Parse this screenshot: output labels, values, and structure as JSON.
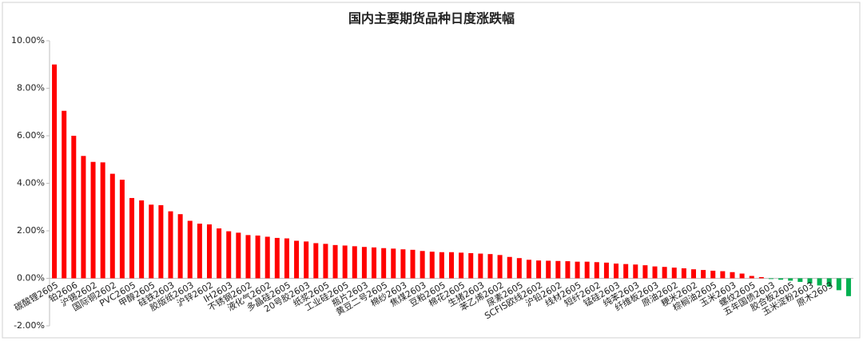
{
  "chart_data": {
    "type": "bar",
    "title": "国内主要期货品种日度涨跌幅",
    "categories": [
      "碳酸锂2605",
      null,
      "铂2606",
      null,
      "沪锡2602",
      null,
      "国际铜2602",
      null,
      "PVC2605",
      null,
      "甲醇2605",
      null,
      "硅铁2603",
      null,
      "胶版纸2603",
      null,
      "沪锌2602",
      null,
      "IH2603",
      null,
      "不锈钢2602",
      null,
      "液化气2602",
      null,
      "多晶硅2605",
      null,
      "20号胶2603",
      null,
      "纸浆2605",
      null,
      "工业硅2605",
      null,
      "瓶片2603",
      null,
      "黄豆二号2605",
      null,
      "棉纱2603",
      null,
      "焦煤2603",
      null,
      "豆粕2605",
      null,
      "棉花2605",
      null,
      "生猪2603",
      null,
      "苯乙烯2602",
      null,
      "尿素2605",
      null,
      "SCFIS欧线2602",
      null,
      "沪铅2602",
      null,
      "线材2605",
      null,
      "短纤2602",
      null,
      "锰硅2603",
      null,
      "纯苯2603",
      null,
      "纤维板2603",
      null,
      "原油2602",
      null,
      "粳米2602",
      null,
      "棕榈油2605",
      null,
      "玉米2603",
      null,
      "螺纹2605",
      null,
      "五年国债2603",
      null,
      "胶合板2605",
      null,
      "玉米淀粉2603",
      null,
      "原木2603",
      null,
      null
    ],
    "values": [
      9.0,
      7.05,
      6.0,
      5.15,
      4.9,
      4.88,
      4.4,
      4.15,
      3.38,
      3.28,
      3.1,
      3.08,
      2.82,
      2.7,
      2.42,
      2.3,
      2.27,
      2.1,
      1.98,
      1.92,
      1.82,
      1.8,
      1.75,
      1.7,
      1.68,
      1.58,
      1.55,
      1.48,
      1.45,
      1.4,
      1.38,
      1.35,
      1.32,
      1.3,
      1.27,
      1.25,
      1.22,
      1.2,
      1.15,
      1.12,
      1.1,
      1.1,
      1.08,
      1.06,
      1.04,
      1.02,
      0.98,
      0.9,
      0.85,
      0.78,
      0.75,
      0.74,
      0.73,
      0.72,
      0.7,
      0.7,
      0.68,
      0.66,
      0.62,
      0.6,
      0.58,
      0.55,
      0.5,
      0.48,
      0.45,
      0.42,
      0.38,
      0.35,
      0.32,
      0.3,
      0.26,
      0.2,
      0.1,
      0.05,
      -0.03,
      -0.06,
      -0.1,
      -0.15,
      -0.22,
      -0.3,
      -0.35,
      -0.5,
      -0.75
    ],
    "color": "#ff0000",
    "negative_color": "#00b050",
    "ylim": [
      -2,
      10
    ],
    "yticks": [
      {
        "value": -2,
        "label": "-2.00%"
      },
      {
        "value": 0,
        "label": "0.00%"
      },
      {
        "value": 2,
        "label": "2.00%"
      },
      {
        "value": 4,
        "label": "4.00%"
      },
      {
        "value": 6,
        "label": "6.00%"
      },
      {
        "value": 8,
        "label": "8.00%"
      },
      {
        "value": 10,
        "label": "10.00%"
      }
    ]
  }
}
